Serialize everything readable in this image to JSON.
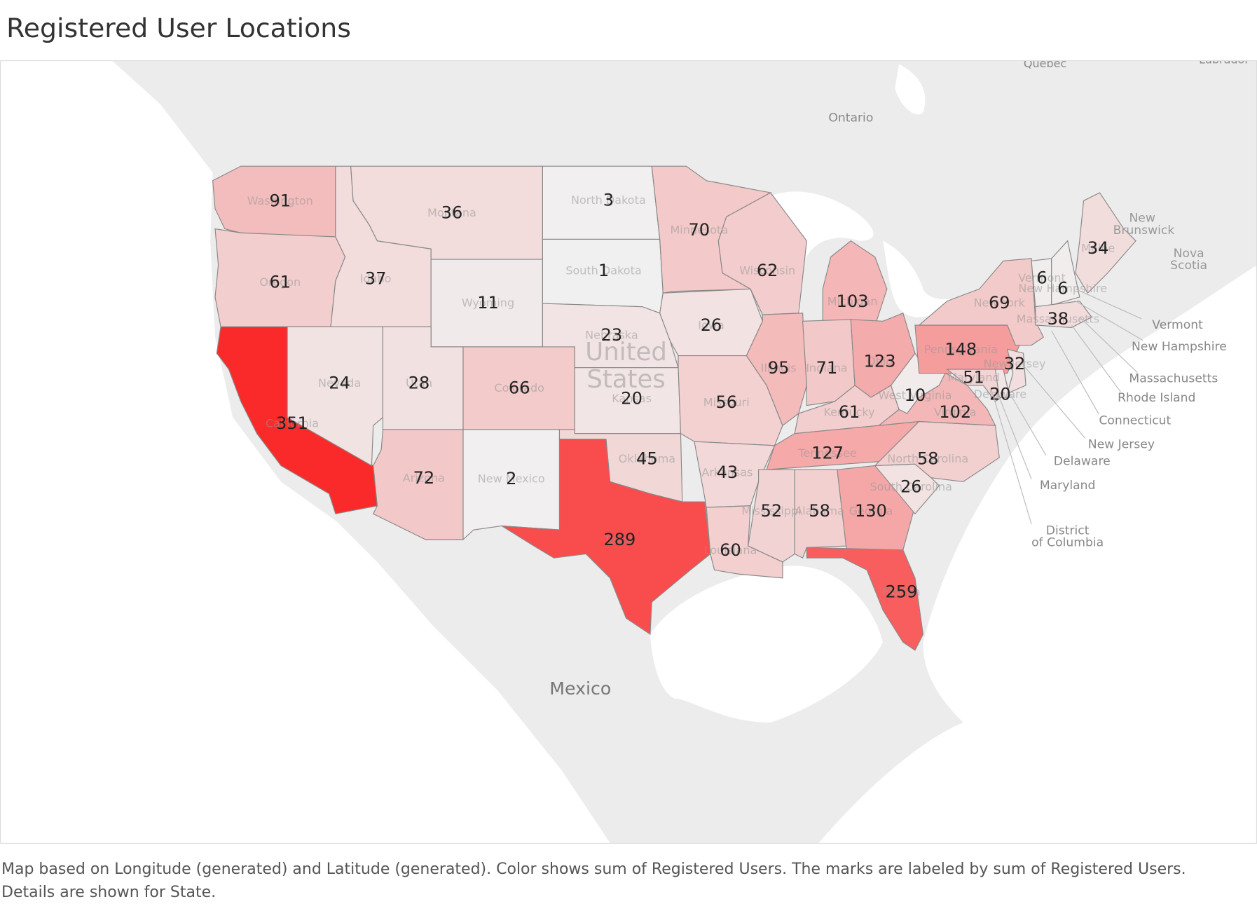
{
  "title": "Registered User Locations",
  "chart_data": {
    "type": "choropleth",
    "color_low": "#f1f0f0",
    "color_high": "#fb2a2a",
    "states": [
      {
        "name": "Washington",
        "value": 91
      },
      {
        "name": "Oregon",
        "value": 61
      },
      {
        "name": "California",
        "value": 351
      },
      {
        "name": "Nevada",
        "value": 24
      },
      {
        "name": "Idaho",
        "value": 37
      },
      {
        "name": "Montana",
        "value": 36
      },
      {
        "name": "Wyoming",
        "value": 11
      },
      {
        "name": "Utah",
        "value": 28
      },
      {
        "name": "Colorado",
        "value": 66
      },
      {
        "name": "Arizona",
        "value": 72
      },
      {
        "name": "New Mexico",
        "value": 2
      },
      {
        "name": "North Dakota",
        "value": 3
      },
      {
        "name": "South Dakota",
        "value": 1
      },
      {
        "name": "Nebraska",
        "value": 23
      },
      {
        "name": "Kansas",
        "value": 20
      },
      {
        "name": "Oklahoma",
        "value": 45
      },
      {
        "name": "Texas",
        "value": 289
      },
      {
        "name": "Minnesota",
        "value": 70
      },
      {
        "name": "Iowa",
        "value": 26
      },
      {
        "name": "Missouri",
        "value": 56
      },
      {
        "name": "Arkansas",
        "value": 43
      },
      {
        "name": "Louisiana",
        "value": 60
      },
      {
        "name": "Wisconsin",
        "value": 62
      },
      {
        "name": "Illinois",
        "value": 95
      },
      {
        "name": "Michigan",
        "value": 103
      },
      {
        "name": "Indiana",
        "value": 71
      },
      {
        "name": "Ohio",
        "value": 123
      },
      {
        "name": "Kentucky",
        "value": 61
      },
      {
        "name": "Tennessee",
        "value": 127
      },
      {
        "name": "Mississippi",
        "value": 52
      },
      {
        "name": "Alabama",
        "value": 58
      },
      {
        "name": "Georgia",
        "value": 130
      },
      {
        "name": "Florida",
        "value": 259
      },
      {
        "name": "South Carolina",
        "value": 26
      },
      {
        "name": "North Carolina",
        "value": 58
      },
      {
        "name": "Virginia",
        "value": 102
      },
      {
        "name": "West Virginia",
        "value": 10
      },
      {
        "name": "Pennsylvania",
        "value": 148
      },
      {
        "name": "New York",
        "value": 69
      },
      {
        "name": "Maine",
        "value": 34
      },
      {
        "name": "Vermont",
        "value": 6
      },
      {
        "name": "New Hampshire",
        "value": 6
      },
      {
        "name": "Massachusetts",
        "value": 38
      },
      {
        "name": "New Jersey",
        "value": 32
      },
      {
        "name": "Maryland",
        "value": 51
      },
      {
        "name": "Delaware",
        "value": 20
      }
    ],
    "map_labels": [
      "Quebec",
      "Labrador",
      "Ontario",
      "New",
      "Brunswick",
      "Nova",
      "Scotia",
      "United",
      "States",
      "Mexico"
    ],
    "callouts": [
      "Vermont",
      "New Hampshire",
      "Massachusetts",
      "Rhode Island",
      "Connecticut",
      "New Jersey",
      "Delaware",
      "Maryland",
      "District",
      "of Columbia"
    ],
    "caption": "Map based on Longitude (generated) and Latitude (generated).  Color shows sum of Registered Users.  The marks are labeled by sum of Registered Users.  Details are shown for State."
  }
}
